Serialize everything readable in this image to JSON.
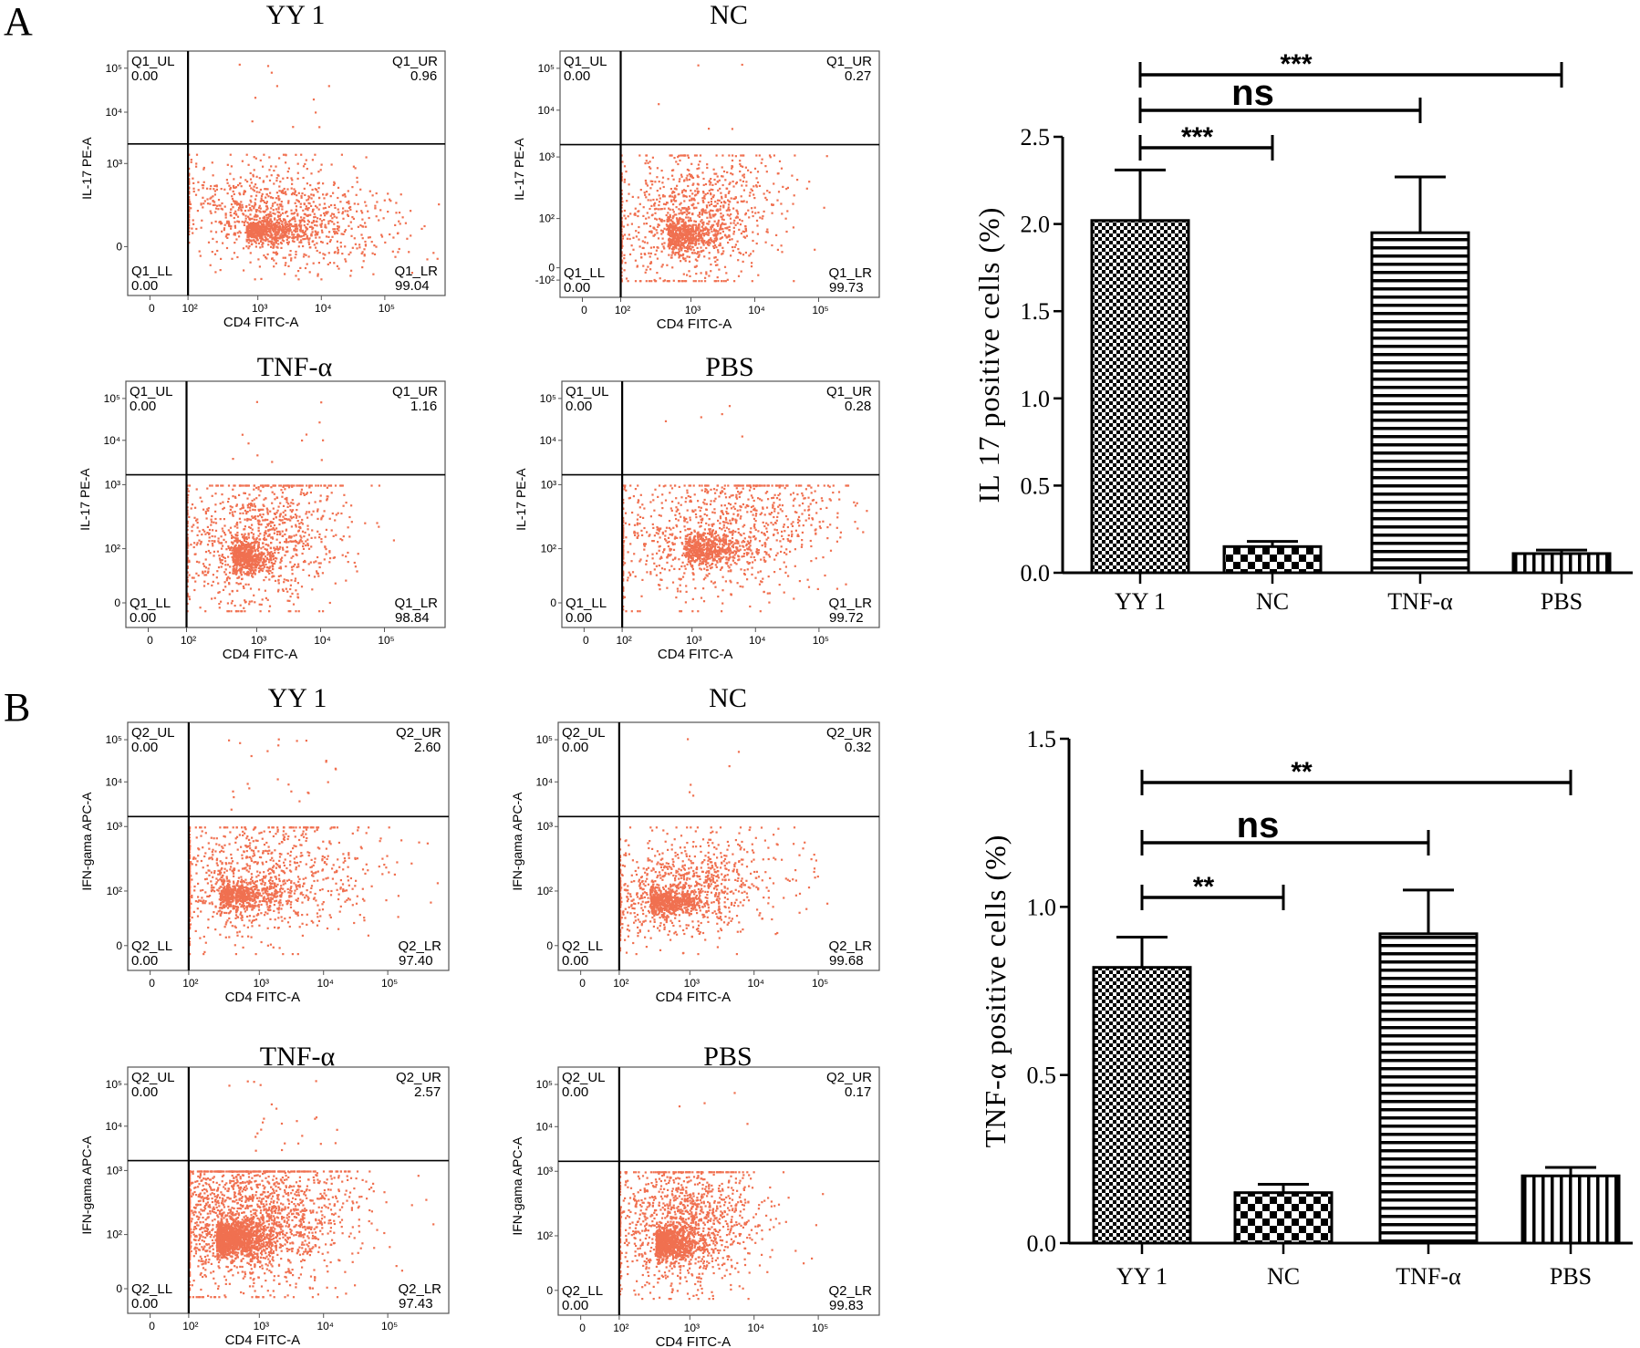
{
  "chart_data": [
    {
      "panel": "A",
      "type": "scatter",
      "subtype": "flow-cytometry",
      "title": "YY 1",
      "xlabel": "CD4 FITC-A",
      "ylabel": "IL-17 PE-A",
      "xticks": [
        "0",
        "10²",
        "10³",
        "10⁴",
        "10⁵"
      ],
      "yticks": [
        "0",
        "10³",
        "10⁴",
        "10⁵"
      ],
      "quadrants": {
        "UL": {
          "name": "Q1_UL",
          "value": "0.00"
        },
        "UR": {
          "name": "Q1_UR",
          "value": "0.96"
        },
        "LL": {
          "name": "Q1_LL",
          "value": "0.00"
        },
        "LR": {
          "name": "Q1_LR",
          "value": "99.04"
        }
      },
      "gate": {
        "x": "10²",
        "y": "10³"
      },
      "events": 1500,
      "dot_color": "#f07050"
    },
    {
      "panel": "A",
      "type": "scatter",
      "subtype": "flow-cytometry",
      "title": "NC",
      "xlabel": "CD4 FITC-A",
      "ylabel": "IL-17 PE-A",
      "xticks": [
        "0",
        "10²",
        "10³",
        "10⁴",
        "10⁵"
      ],
      "yticks": [
        "-10²",
        "0",
        "10²",
        "10³",
        "10⁴",
        "10⁵"
      ],
      "quadrants": {
        "UL": {
          "name": "Q1_UL",
          "value": "0.00"
        },
        "UR": {
          "name": "Q1_UR",
          "value": "0.27"
        },
        "LL": {
          "name": "Q1_LL",
          "value": "0.00"
        },
        "LR": {
          "name": "Q1_LR",
          "value": "99.73"
        }
      },
      "gate": {
        "x": "10²",
        "y": "10³"
      },
      "events": 1500,
      "dot_color": "#f07050"
    },
    {
      "panel": "A",
      "type": "scatter",
      "subtype": "flow-cytometry",
      "title": "TNF-α",
      "xlabel": "CD4 FITC-A",
      "ylabel": "IL-17 PE-A",
      "xticks": [
        "0",
        "10²",
        "10³",
        "10⁴",
        "10⁵"
      ],
      "yticks": [
        "0",
        "10²",
        "10³",
        "10⁴",
        "10⁵"
      ],
      "quadrants": {
        "UL": {
          "name": "Q1_UL",
          "value": "0.00"
        },
        "UR": {
          "name": "Q1_UR",
          "value": "1.16"
        },
        "LL": {
          "name": "Q1_LL",
          "value": "0.00"
        },
        "LR": {
          "name": "Q1_LR",
          "value": "98.84"
        }
      },
      "gate": {
        "x": "10²",
        "y": "10³"
      },
      "events": 1500,
      "dot_color": "#f07050"
    },
    {
      "panel": "A",
      "type": "scatter",
      "subtype": "flow-cytometry",
      "title": "PBS",
      "xlabel": "CD4 FITC-A",
      "ylabel": "IL-17 PE-A",
      "xticks": [
        "0",
        "10²",
        "10³",
        "10⁴",
        "10⁵"
      ],
      "yticks": [
        "0",
        "10²",
        "10³",
        "10⁴",
        "10⁵"
      ],
      "quadrants": {
        "UL": {
          "name": "Q1_UL",
          "value": "0.00"
        },
        "UR": {
          "name": "Q1_UR",
          "value": "0.28"
        },
        "LL": {
          "name": "Q1_LL",
          "value": "0.00"
        },
        "LR": {
          "name": "Q1_LR",
          "value": "99.72"
        }
      },
      "gate": {
        "x": "10²",
        "y": "10³"
      },
      "events": 1500,
      "dot_color": "#f07050"
    },
    {
      "panel": "A",
      "type": "bar",
      "categories": [
        "YY 1",
        "NC",
        "TNF-α",
        "PBS"
      ],
      "values": [
        2.02,
        0.15,
        1.95,
        0.11
      ],
      "errors": [
        0.29,
        0.03,
        0.32,
        0.02
      ],
      "patterns": [
        "checker",
        "checker-large",
        "hstripes",
        "vstripes"
      ],
      "xlabel": "",
      "ylabel": "IL 17 positive cells (%)",
      "ylim": [
        0,
        2.5
      ],
      "yticks": [
        0.0,
        0.5,
        1.0,
        1.5,
        2.0,
        2.5
      ],
      "significance": [
        {
          "from": "YY 1",
          "to": "NC",
          "label": "***"
        },
        {
          "from": "YY 1",
          "to": "TNF-α",
          "label": "ns"
        },
        {
          "from": "YY 1",
          "to": "PBS",
          "label": "***"
        }
      ]
    },
    {
      "panel": "B",
      "type": "scatter",
      "subtype": "flow-cytometry",
      "title": "YY 1",
      "xlabel": "CD4 FITC-A",
      "ylabel": "IFN-gama APC-A",
      "xticks": [
        "0",
        "10²",
        "10³",
        "10⁴",
        "10⁵"
      ],
      "yticks": [
        "0",
        "10²",
        "10³",
        "10⁴",
        "10⁵"
      ],
      "quadrants": {
        "UL": {
          "name": "Q2_UL",
          "value": "0.00"
        },
        "UR": {
          "name": "Q2_UR",
          "value": "2.60"
        },
        "LL": {
          "name": "Q2_LL",
          "value": "0.00"
        },
        "LR": {
          "name": "Q2_LR",
          "value": "97.40"
        }
      },
      "gate": {
        "x": "10²",
        "y": "10³"
      },
      "events": 1500,
      "dot_color": "#f07050"
    },
    {
      "panel": "B",
      "type": "scatter",
      "subtype": "flow-cytometry",
      "title": "NC",
      "xlabel": "CD4 FITC-A",
      "ylabel": "IFN-gama APC-A",
      "xticks": [
        "0",
        "10²",
        "10³",
        "10⁴",
        "10⁵"
      ],
      "yticks": [
        "0",
        "10²",
        "10³",
        "10⁴",
        "10⁵"
      ],
      "quadrants": {
        "UL": {
          "name": "Q2_UL",
          "value": "0.00"
        },
        "UR": {
          "name": "Q2_UR",
          "value": "0.32"
        },
        "LL": {
          "name": "Q2_LL",
          "value": "0.00"
        },
        "LR": {
          "name": "Q2_LR",
          "value": "99.68"
        }
      },
      "gate": {
        "x": "10²",
        "y": "10³"
      },
      "events": 1500,
      "dot_color": "#f07050"
    },
    {
      "panel": "B",
      "type": "scatter",
      "subtype": "flow-cytometry",
      "title": "TNF-α",
      "xlabel": "CD4 FITC-A",
      "ylabel": "IFN-gama APC-A",
      "xticks": [
        "0",
        "10²",
        "10³",
        "10⁴",
        "10⁵"
      ],
      "yticks": [
        "0",
        "10²",
        "10³",
        "10⁴",
        "10⁵"
      ],
      "quadrants": {
        "UL": {
          "name": "Q2_UL",
          "value": "0.00"
        },
        "UR": {
          "name": "Q2_UR",
          "value": "2.57"
        },
        "LL": {
          "name": "Q2_LL",
          "value": "0.00"
        },
        "LR": {
          "name": "Q2_LR",
          "value": "97.43"
        }
      },
      "gate": {
        "x": "10²",
        "y": "10³"
      },
      "events": 3000,
      "dot_color": "#f07050"
    },
    {
      "panel": "B",
      "type": "scatter",
      "subtype": "flow-cytometry",
      "title": "PBS",
      "xlabel": "CD4 FITC-A",
      "ylabel": "IFN-gama APC-A",
      "xticks": [
        "0",
        "10²",
        "10³",
        "10⁴",
        "10⁵"
      ],
      "yticks": [
        "0",
        "10²",
        "10³",
        "10⁴",
        "10⁵"
      ],
      "quadrants": {
        "UL": {
          "name": "Q2_UL",
          "value": "0.00"
        },
        "UR": {
          "name": "Q2_UR",
          "value": "0.17"
        },
        "LL": {
          "name": "Q2_LL",
          "value": "0.00"
        },
        "LR": {
          "name": "Q2_LR",
          "value": "99.83"
        }
      },
      "gate": {
        "x": "10²",
        "y": "10³"
      },
      "events": 2000,
      "dot_color": "#f07050"
    },
    {
      "panel": "B",
      "type": "bar",
      "categories": [
        "YY 1",
        "NC",
        "TNF-α",
        "PBS"
      ],
      "values": [
        0.82,
        0.15,
        0.92,
        0.2
      ],
      "errors": [
        0.09,
        0.025,
        0.13,
        0.025
      ],
      "patterns": [
        "checker",
        "checker-large",
        "hstripes",
        "vstripes"
      ],
      "xlabel": "",
      "ylabel": "TNF-α  positive cells (%)",
      "ylim": [
        0,
        1.5
      ],
      "yticks": [
        0.0,
        0.5,
        1.0,
        1.5
      ],
      "significance": [
        {
          "from": "YY 1",
          "to": "NC",
          "label": "**"
        },
        {
          "from": "YY 1",
          "to": "TNF-α",
          "label": "ns"
        },
        {
          "from": "YY 1",
          "to": "PBS",
          "label": "**"
        }
      ]
    }
  ],
  "panel_labels": [
    "A",
    "B"
  ],
  "colors": {
    "dots": "#f07050",
    "ink": "#000000",
    "frame": "#444444"
  }
}
